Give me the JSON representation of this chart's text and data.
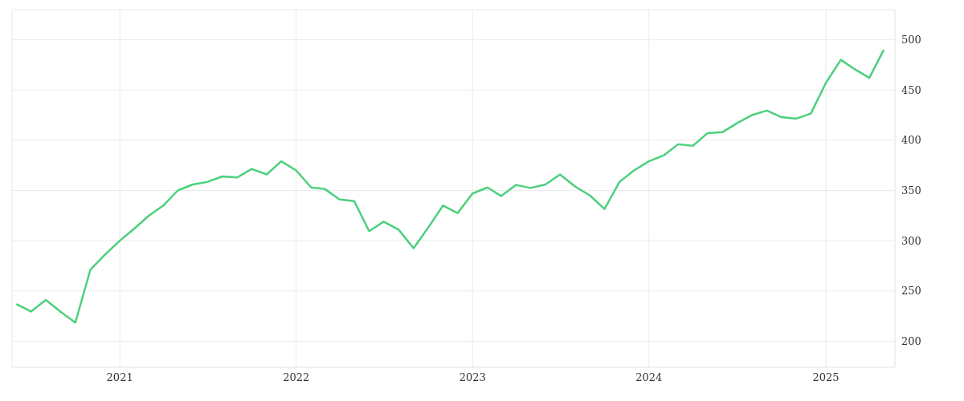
{
  "chart_data": {
    "type": "line",
    "x": [
      "2020-06",
      "2020-07",
      "2020-08",
      "2020-09",
      "2020-10",
      "2020-11",
      "2020-12",
      "2021-01",
      "2021-02",
      "2021-03",
      "2021-04",
      "2021-05",
      "2021-06",
      "2021-07",
      "2021-08",
      "2021-09",
      "2021-10",
      "2021-11",
      "2021-12",
      "2022-01",
      "2022-02",
      "2022-03",
      "2022-04",
      "2022-05",
      "2022-06",
      "2022-07",
      "2022-08",
      "2022-09",
      "2022-10",
      "2022-11",
      "2022-12",
      "2023-01",
      "2023-02",
      "2023-03",
      "2023-04",
      "2023-05",
      "2023-06",
      "2023-07",
      "2023-08",
      "2023-09",
      "2023-10",
      "2023-11",
      "2023-12",
      "2024-01",
      "2024-02",
      "2024-03",
      "2024-04",
      "2024-05",
      "2024-06",
      "2024-07",
      "2024-08",
      "2024-09",
      "2024-10",
      "2024-11",
      "2024-12",
      "2025-01",
      "2025-02",
      "2025-03",
      "2025-04",
      "2025-05"
    ],
    "series": [
      {
        "color": "#4cd07d",
        "values": [
          237,
          229.5,
          241,
          229,
          218.5,
          271,
          286,
          300,
          312.5,
          324.5,
          335,
          350,
          356,
          358.5,
          364,
          363,
          371.5,
          366,
          379,
          370,
          353,
          351.5,
          341,
          339.5,
          309.5,
          319,
          311,
          292.5,
          313,
          335,
          327.5,
          347,
          353,
          344.5,
          355.5,
          352.5,
          356,
          366,
          354,
          345,
          331.5,
          358.5,
          370,
          379,
          385,
          396,
          394.5,
          407,
          408,
          417,
          425,
          429.5,
          423,
          421.5,
          426.5,
          457,
          480,
          471,
          462,
          490
        ]
      }
    ],
    "xlim": [
      "2020-05-23",
      "2025-05-24"
    ],
    "xticks": [
      "2021",
      "2022",
      "2023",
      "2024",
      "2025"
    ],
    "ylim": [
      174,
      530
    ],
    "yticks": [
      200,
      250,
      300,
      350,
      400,
      450,
      500
    ],
    "grid": true,
    "legend": false,
    "marker": "none",
    "line_style": "solid"
  }
}
